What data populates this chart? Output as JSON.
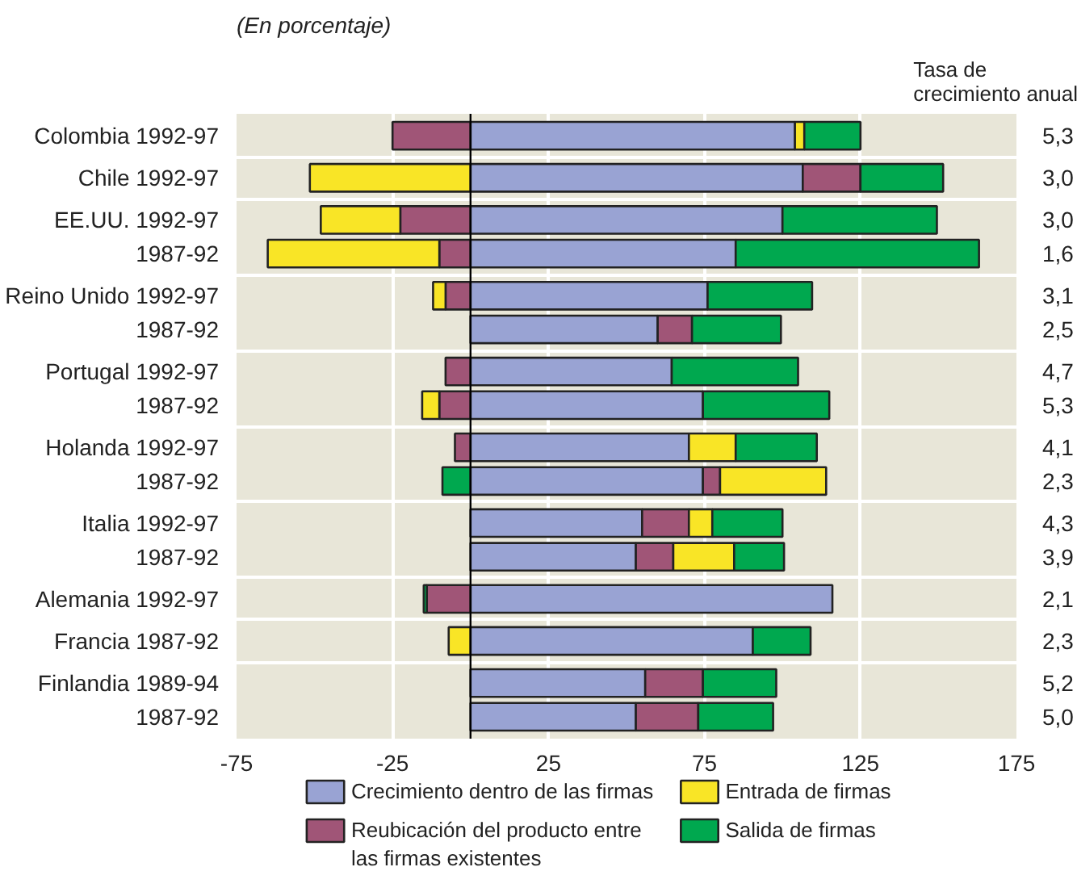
{
  "chart_data": {
    "type": "bar",
    "orientation": "horizontal",
    "stacked": true,
    "subtitle": "(En porcentaje)",
    "y2label": "Tasa de crecimiento anual",
    "categories": [
      "Colombia 1992-97",
      "Chile 1992-97",
      "EE.UU. 1992-97",
      "1987-92",
      "Reino Unido 1992-97",
      "1987-92",
      "Portugal 1992-97",
      "1987-92",
      "Holanda 1992-97",
      "1987-92",
      "Italia 1992-97",
      "1987-92",
      "Alemania 1992-97",
      "Francia 1987-92",
      "Finlandia 1989-94",
      "1987-92"
    ],
    "series": [
      {
        "name": "Crecimiento dentro de las firmas",
        "color": "#99a3d3",
        "values": [
          104,
          106.5,
          100,
          85,
          76,
          60,
          64.5,
          74.5,
          70,
          74.5,
          55,
          53,
          116,
          90.5,
          56,
          53
        ]
      },
      {
        "name": "Reubicación del producto entre las firmas existentes",
        "color": "#a05577",
        "values": [
          -25,
          18.5,
          -22.5,
          -10,
          -8,
          11,
          -8,
          -10,
          -5,
          5.5,
          15,
          12,
          -14,
          null,
          18.5,
          20
        ]
      },
      {
        "name": "Entrada de firmas",
        "color": "#f9e526",
        "values": [
          3,
          -51.5,
          -25.5,
          -55,
          -4,
          null,
          null,
          -5.5,
          15,
          34,
          7.5,
          19.5,
          null,
          -7,
          null,
          null
        ]
      },
      {
        "name": "Salida de firmas",
        "color": "#00a84f",
        "values": [
          18,
          26.5,
          49.5,
          78,
          33.5,
          28.5,
          40.5,
          40.5,
          26,
          -9,
          22.5,
          16,
          -1,
          18.5,
          23.5,
          24
        ]
      }
    ],
    "xlim": [
      -75,
      175
    ],
    "xticks": [
      -75,
      -25,
      25,
      75,
      125,
      175
    ],
    "ref_lines": [
      {
        "axis": "x",
        "value": 0,
        "color": "#000000"
      }
    ],
    "annotations": [
      "5,3",
      "3,0",
      "3,0",
      "1,6",
      "3,1",
      "2,5",
      "4,7",
      "5,3",
      "4,1",
      "2,3",
      "4,3",
      "3,9",
      "2,1",
      "2,3",
      "5,2",
      "5,0"
    ],
    "grid": true,
    "legend": "bottom"
  }
}
